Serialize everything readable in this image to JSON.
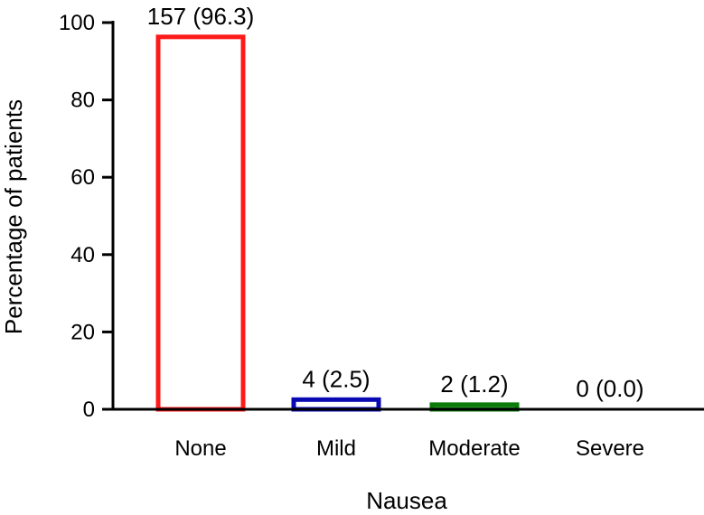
{
  "chart_data": {
    "type": "bar",
    "title": "",
    "xlabel": "Nausea",
    "ylabel": "Percentage of patients",
    "categories": [
      "None",
      "Mild",
      "Moderate",
      "Severe"
    ],
    "values": [
      96.3,
      2.5,
      1.2,
      0.0
    ],
    "data_labels": [
      "157 (96.3)",
      "4 (2.5)",
      "2 (1.2)",
      "0 (0.0)"
    ],
    "bar_colors": [
      "#ff1a1a",
      "#0a0ab4",
      "#0a7a0a",
      "#000000"
    ],
    "bar_fill": "#ffffff",
    "ylim": [
      0,
      100
    ],
    "yticks": [
      0,
      20,
      40,
      60,
      80,
      100
    ],
    "ytick_labels": [
      "0",
      "20",
      "40",
      "60",
      "80",
      "100"
    ],
    "grid": false,
    "legend": "none"
  }
}
